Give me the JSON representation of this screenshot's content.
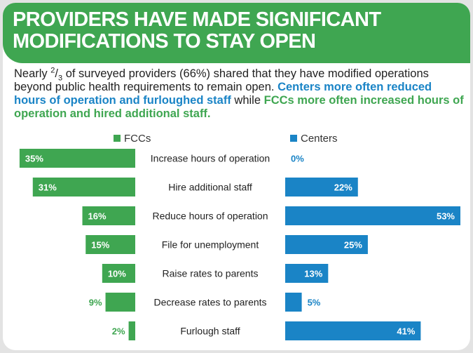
{
  "header": {
    "title_line1": "PROVIDERS HAVE MADE SIGNIFICANT",
    "title_line2": "MODIFICATIONS TO STAY OPEN"
  },
  "intro": {
    "lead": "Nearly ",
    "frac_num": "2",
    "frac_sep": "/",
    "frac_den": "3",
    "text1": " of surveyed providers (66%) shared that they have modified operations beyond public health requirements to remain open. ",
    "centers_text": "Centers more often reduced hours of operation and furloughed staff",
    "while": " while ",
    "fccs_text": "FCCs more often increased hours of operation and hired additional staff."
  },
  "colors": {
    "fcc": "#3fa651",
    "center": "#1a84c6",
    "header": "#3fa651"
  },
  "chart_data": {
    "type": "bar",
    "orientation": "horizontal-butterfly",
    "categories": [
      "Increase hours of operation",
      "Hire additional staff",
      "Reduce hours of operation",
      "File for unemployment",
      "Raise rates to parents",
      "Decrease rates to parents",
      "Furlough staff"
    ],
    "series": [
      {
        "name": "FCCs",
        "values": [
          35,
          31,
          16,
          15,
          10,
          9,
          2
        ],
        "labels": [
          "35%",
          "31%",
          "16%",
          "15%",
          "10%",
          "9%",
          "2%"
        ]
      },
      {
        "name": "Centers",
        "values": [
          0,
          22,
          53,
          25,
          13,
          5,
          41
        ],
        "labels": [
          "0%",
          "22%",
          "53%",
          "25%",
          "13%",
          "5%",
          "41%"
        ]
      }
    ],
    "xlim": [
      0,
      53
    ],
    "legend": "top"
  }
}
